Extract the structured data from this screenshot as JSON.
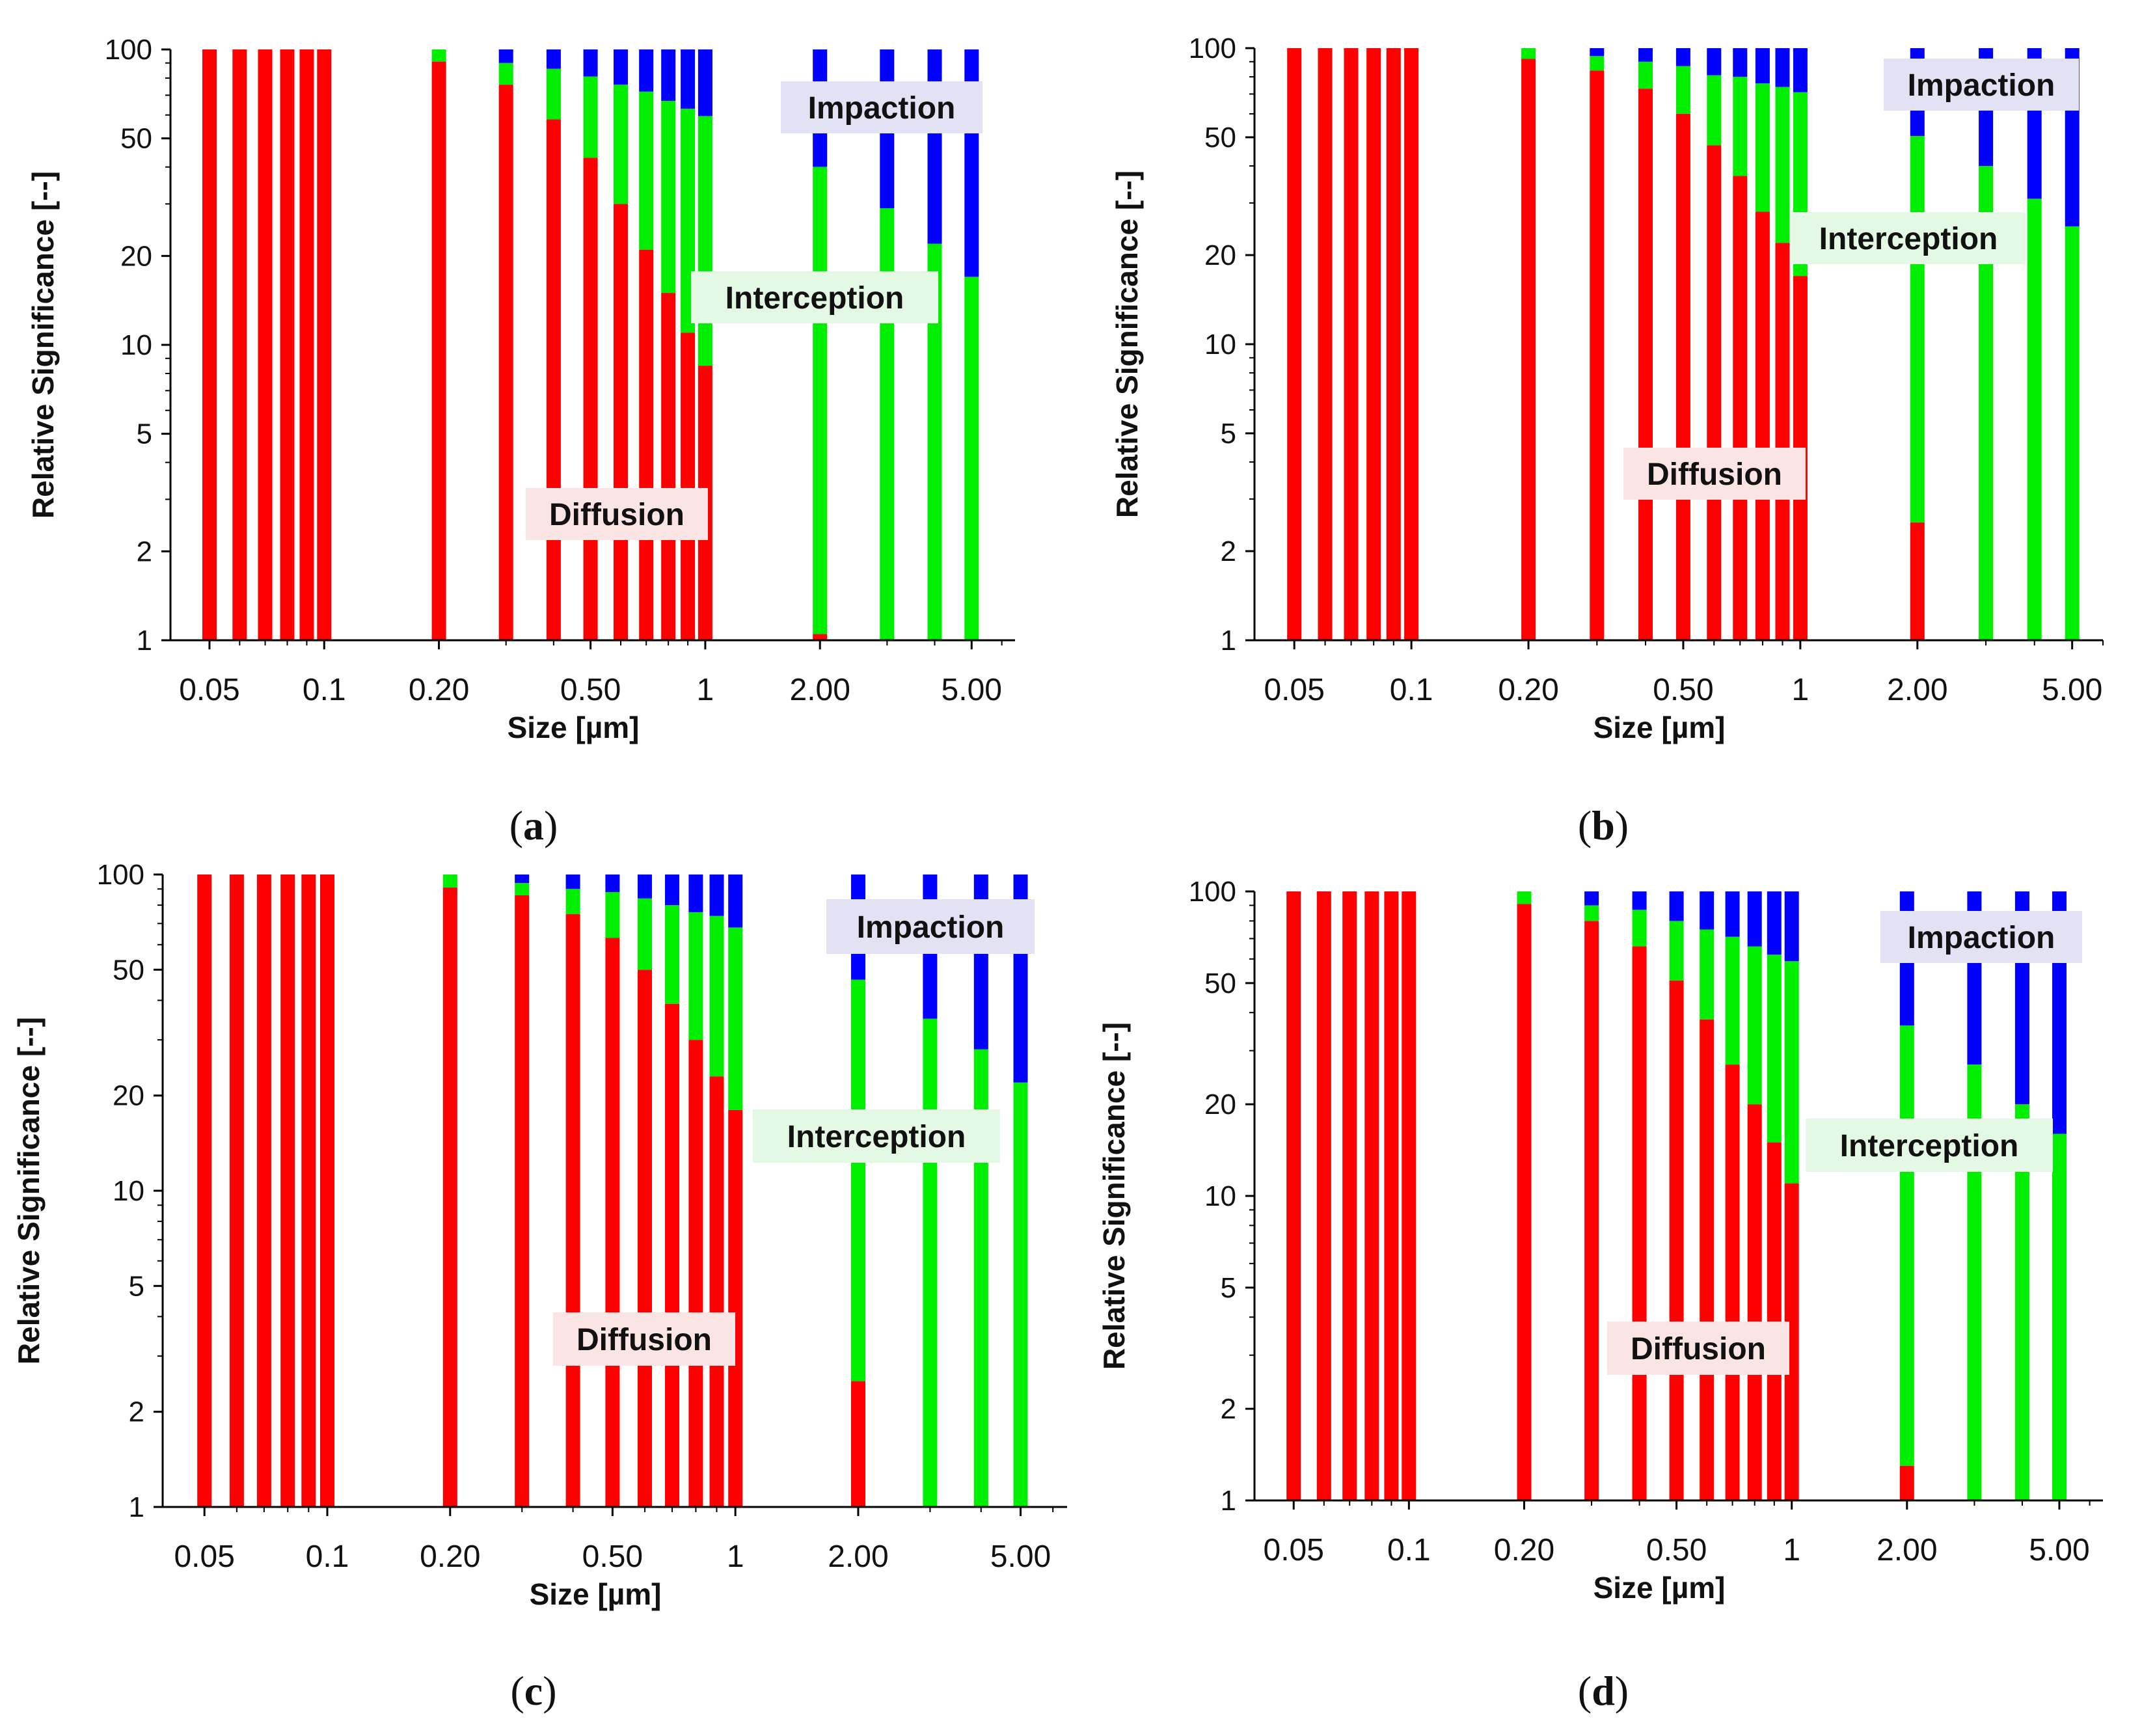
{
  "figure": {
    "panels": [
      "a",
      "b",
      "c",
      "d"
    ]
  },
  "colors": {
    "diffusion": "#ff0000",
    "interception": "#00ee00",
    "impaction": "#0000ff",
    "diffusion_label_bg": "#fbe4e4",
    "interception_label_bg": "#e3f9e3",
    "impaction_label_bg": "#e2e2f4"
  },
  "chart_data": [
    {
      "panel": "a",
      "caption": "(a)",
      "type": "bar",
      "stacked": true,
      "xscale": "log",
      "yscale": "log",
      "xlim": [
        0.0395,
        6.5
      ],
      "ylim": [
        1,
        100
      ],
      "xlabel": "Size [µm]",
      "ylabel": "Relative Significance [--]",
      "xticks": [
        "0.05",
        "0.1",
        "0.20",
        "0.50",
        "1",
        "2.00",
        "5.00"
      ],
      "yticks": [
        "1",
        "2",
        "5",
        "10",
        "20",
        "50",
        "100"
      ],
      "labels": {
        "impaction": "Impaction",
        "interception": "Interception",
        "diffusion": "Diffusion"
      },
      "x": [
        0.05,
        0.06,
        0.07,
        0.08,
        0.09,
        0.1,
        0.2,
        0.3,
        0.4,
        0.5,
        0.6,
        0.7,
        0.8,
        0.9,
        1.0,
        2.0,
        3.0,
        4.0,
        5.0
      ],
      "series": [
        {
          "name": "Diffusion",
          "values": [
            100,
            100,
            100,
            100,
            100,
            100,
            91,
            76,
            58,
            43,
            30,
            21,
            15,
            11,
            8.5,
            1.05,
            1,
            1,
            1
          ]
        },
        {
          "name": "Interception",
          "values": [
            0,
            0,
            0,
            0,
            0,
            0,
            9,
            14,
            28,
            38,
            46,
            51,
            52,
            52,
            51,
            39,
            28,
            21,
            16
          ]
        },
        {
          "name": "Impaction",
          "values": [
            0,
            0,
            0,
            0,
            0,
            0,
            0,
            10,
            14,
            19,
            24,
            28,
            33,
            37,
            40.5,
            60,
            72,
            79,
            84
          ]
        }
      ]
    },
    {
      "panel": "b",
      "caption": "(b)",
      "type": "bar",
      "stacked": true,
      "xscale": "log",
      "yscale": "log",
      "xlim": [
        0.0395,
        6.0
      ],
      "ylim": [
        1,
        100
      ],
      "xlabel": "Size [µm]",
      "ylabel": "Relative Significance [--]",
      "xticks": [
        "0.05",
        "0.1",
        "0.20",
        "0.50",
        "1",
        "2.00",
        "5.00"
      ],
      "yticks": [
        "1",
        "2",
        "5",
        "10",
        "20",
        "50",
        "100"
      ],
      "labels": {
        "impaction": "Impaction",
        "interception": "Interception",
        "diffusion": "Diffusion"
      },
      "x": [
        0.05,
        0.06,
        0.07,
        0.08,
        0.09,
        0.1,
        0.2,
        0.3,
        0.4,
        0.5,
        0.6,
        0.7,
        0.8,
        0.9,
        1.0,
        2.0,
        3.0,
        4.0,
        5.0
      ],
      "series": [
        {
          "name": "Diffusion",
          "values": [
            100,
            100,
            100,
            100,
            100,
            100,
            92,
            84,
            73,
            60,
            47,
            37,
            28,
            22,
            17,
            2.5,
            1,
            1,
            1
          ]
        },
        {
          "name": "Interception",
          "values": [
            0,
            0,
            0,
            0,
            0,
            0,
            8,
            10,
            17,
            27,
            34,
            43,
            48,
            52,
            54,
            48,
            39,
            30,
            24
          ]
        },
        {
          "name": "Impaction",
          "values": [
            0,
            0,
            0,
            0,
            0,
            0,
            0,
            6,
            10,
            13,
            19,
            20,
            24,
            26,
            29,
            49.5,
            60,
            69,
            75
          ]
        }
      ]
    },
    {
      "panel": "c",
      "caption": "(c)",
      "type": "bar",
      "stacked": true,
      "xscale": "log",
      "yscale": "log",
      "xlim": [
        0.0395,
        6.5
      ],
      "ylim": [
        1,
        100
      ],
      "xlabel": "Size [µm]",
      "ylabel": "Relative Significance [--]",
      "xticks": [
        "0.05",
        "0.1",
        "0.20",
        "0.50",
        "1",
        "2.00",
        "5.00"
      ],
      "yticks": [
        "1",
        "2",
        "5",
        "10",
        "20",
        "50",
        "100"
      ],
      "labels": {
        "impaction": "Impaction",
        "interception": "Interception",
        "diffusion": "Diffusion"
      },
      "x": [
        0.05,
        0.06,
        0.07,
        0.08,
        0.09,
        0.1,
        0.2,
        0.3,
        0.4,
        0.5,
        0.6,
        0.7,
        0.8,
        0.9,
        1.0,
        2.0,
        3.0,
        4.0,
        5.0
      ],
      "series": [
        {
          "name": "Diffusion",
          "values": [
            100,
            100,
            100,
            100,
            100,
            100,
            91,
            86,
            75,
            63,
            50,
            39,
            30,
            23,
            18,
            2.5,
            1,
            1,
            1
          ]
        },
        {
          "name": "Interception",
          "values": [
            0,
            0,
            0,
            0,
            0,
            0,
            9,
            8,
            15,
            25,
            34,
            41,
            46,
            51,
            50,
            44,
            34,
            27,
            21
          ]
        },
        {
          "name": "Impaction",
          "values": [
            0,
            0,
            0,
            0,
            0,
            0,
            0,
            6,
            10,
            12,
            16,
            20,
            24,
            26,
            32,
            53.5,
            65,
            72,
            78
          ]
        }
      ]
    },
    {
      "panel": "d",
      "caption": "(d)",
      "type": "bar",
      "stacked": true,
      "xscale": "log",
      "yscale": "log",
      "xlim": [
        0.0395,
        6.5
      ],
      "ylim": [
        1,
        100
      ],
      "xlabel": "Size [µm]",
      "ylabel": "Relative Significance [--]",
      "xticks": [
        "0.05",
        "0.1",
        "0.20",
        "0.50",
        "1",
        "2.00",
        "5.00"
      ],
      "yticks": [
        "1",
        "2",
        "5",
        "10",
        "20",
        "50",
        "100"
      ],
      "labels": {
        "impaction": "Impaction",
        "interception": "Interception",
        "diffusion": "Diffusion"
      },
      "x": [
        0.05,
        0.06,
        0.07,
        0.08,
        0.09,
        0.1,
        0.2,
        0.3,
        0.4,
        0.5,
        0.6,
        0.7,
        0.8,
        0.9,
        1.0,
        2.0,
        3.0,
        4.0,
        5.0
      ],
      "series": [
        {
          "name": "Diffusion",
          "values": [
            100,
            100,
            100,
            100,
            100,
            100,
            91,
            80,
            66,
            51,
            38,
            27,
            20,
            15,
            11,
            1.3,
            1,
            1,
            1
          ]
        },
        {
          "name": "Interception",
          "values": [
            0,
            0,
            0,
            0,
            0,
            0,
            9,
            10,
            21,
            29,
            37,
            44,
            46,
            47,
            48,
            35,
            26,
            19,
            15
          ]
        },
        {
          "name": "Impaction",
          "values": [
            0,
            0,
            0,
            0,
            0,
            0,
            0,
            10,
            13,
            20,
            25,
            29,
            34,
            38,
            41,
            63.7,
            73,
            80,
            84
          ]
        }
      ]
    }
  ]
}
